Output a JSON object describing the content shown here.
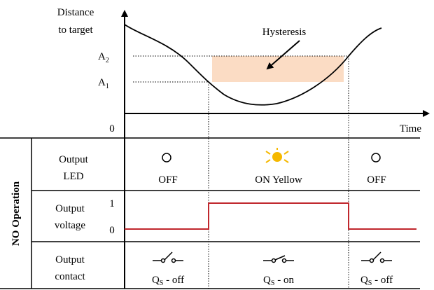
{
  "axis": {
    "y_label_lines": [
      "Distance",
      "to target"
    ],
    "x_label": "Time",
    "origin": "0",
    "levels": [
      {
        "letter": "A",
        "sub": "2"
      },
      {
        "letter": "A",
        "sub": "1"
      }
    ],
    "annotation": "Hysteresis"
  },
  "side_label": "NO Operation",
  "rows": [
    {
      "label_lines": [
        "Output",
        "LED"
      ],
      "states": [
        "OFF",
        "ON Yellow",
        "OFF"
      ]
    },
    {
      "label_lines": [
        "Output",
        "voltage"
      ],
      "levels": [
        "1",
        "0"
      ]
    },
    {
      "label_lines": [
        "Output",
        "contact"
      ],
      "states": [
        {
          "letter": "Q",
          "sub": "S",
          "rest": " - off"
        },
        {
          "letter": "Q",
          "sub": "S",
          "rest": " - on"
        },
        {
          "letter": "Q",
          "sub": "S",
          "rest": " - off"
        }
      ]
    }
  ]
}
